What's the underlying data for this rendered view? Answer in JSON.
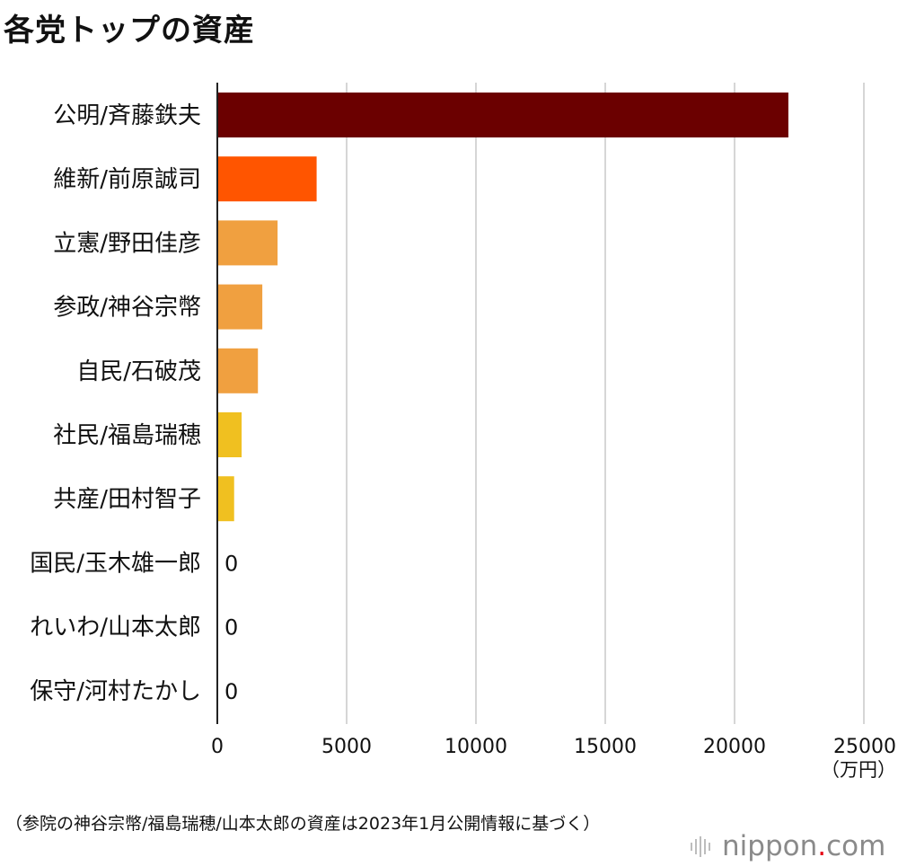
{
  "title": "各党トップの資産",
  "note": "（参院の神谷宗幣/福島瑞穂/山本太郎の資産は2023年1月公開情報に基づく）",
  "brand": {
    "name": "nippon",
    "dot": ".",
    "suffix": "com",
    "icon": "nippon-waveform-icon",
    "dot_color": "#e60012"
  },
  "chart_data": {
    "type": "bar",
    "orientation": "horizontal",
    "title": "各党トップの資産",
    "unit_label": "（万円）",
    "xlim": [
      0,
      25000
    ],
    "ticks": [
      0,
      5000,
      10000,
      15000,
      20000,
      25000
    ],
    "grid": true,
    "categories": [
      "公明/斉藤鉄夫",
      "維新/前原誠司",
      "立憲/野田佳彦",
      "参政/神谷宗幣",
      "自民/石破茂",
      "社民/福島瑞穂",
      "共産/田村智子",
      "国民/玉木雄一郎",
      "れいわ/山本太郎",
      "保守/河村たかし"
    ],
    "values": [
      22080,
      3840,
      2330,
      1740,
      1570,
      940,
      650,
      0,
      0,
      0
    ],
    "colors": [
      "#6b0000",
      "#ff5500",
      "#f0a040",
      "#f0a040",
      "#f0a040",
      "#f0c020",
      "#f0c020",
      "#f0c020",
      "#f0c020",
      "#f0c020"
    ],
    "zero_label": "0"
  }
}
